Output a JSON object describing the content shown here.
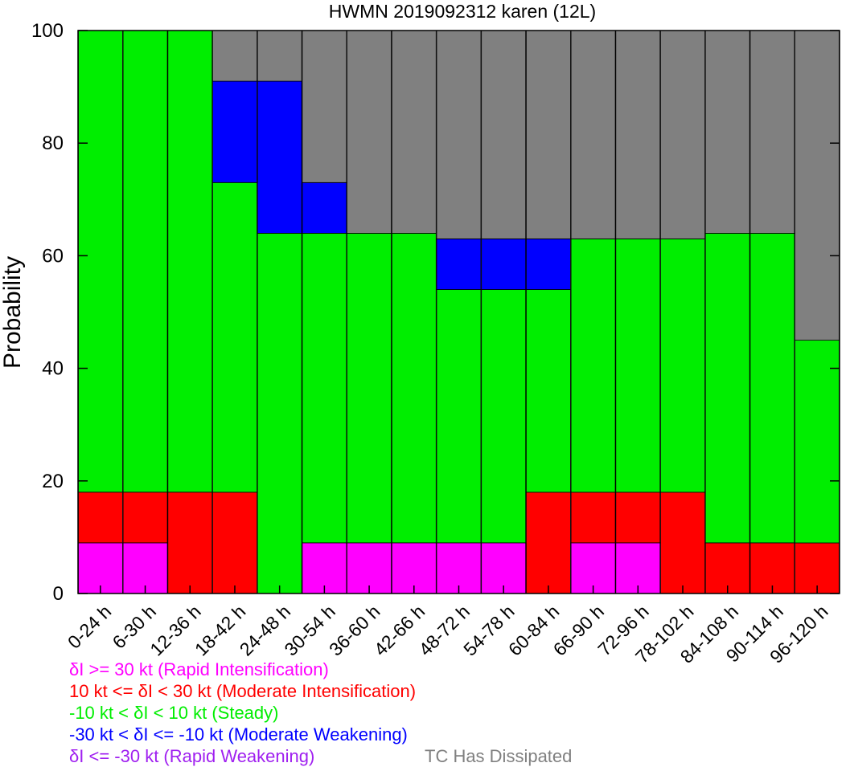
{
  "chart_data": {
    "type": "bar",
    "stacked": true,
    "title": "HWMN 2019092312 karen (12L)",
    "ylabel": "Probability",
    "xlabel": "",
    "ylim": [
      0,
      100
    ],
    "yticks": [
      0,
      20,
      40,
      60,
      80,
      100
    ],
    "grid": false,
    "categories": [
      "0-24 h",
      "6-30 h",
      "12-36 h",
      "18-42 h",
      "24-48 h",
      "30-54 h",
      "36-60 h",
      "42-66 h",
      "48-72 h",
      "54-78 h",
      "60-84 h",
      "66-90 h",
      "72-96 h",
      "78-102 h",
      "84-108 h",
      "90-114 h",
      "96-120 h"
    ],
    "series": [
      {
        "name": "Rapid Intensification",
        "color": "#ff00ff",
        "values": [
          9,
          9,
          0,
          0,
          0,
          9,
          9,
          9,
          9,
          9,
          0,
          9,
          9,
          0,
          0,
          0,
          0
        ]
      },
      {
        "name": "Moderate Intensification",
        "color": "#ff0000",
        "values": [
          9,
          9,
          18,
          18,
          0,
          0,
          0,
          0,
          0,
          0,
          18,
          9,
          9,
          18,
          9,
          9,
          9
        ]
      },
      {
        "name": "Steady",
        "color": "#00ee00",
        "values": [
          82,
          82,
          82,
          55,
          64,
          55,
          55,
          55,
          45,
          45,
          36,
          45,
          45,
          45,
          55,
          55,
          36
        ]
      },
      {
        "name": "Moderate Weakening",
        "color": "#0000ff",
        "values": [
          0,
          0,
          0,
          18,
          27,
          9,
          0,
          0,
          9,
          9,
          9,
          0,
          0,
          0,
          0,
          0,
          0
        ]
      },
      {
        "name": "Rapid Weakening",
        "color": "#a020f0",
        "values": [
          0,
          0,
          0,
          0,
          0,
          0,
          0,
          0,
          0,
          0,
          0,
          0,
          0,
          0,
          0,
          0,
          0
        ]
      },
      {
        "name": "TC Has Dissipated",
        "color": "#808080",
        "values": [
          0,
          0,
          0,
          9,
          9,
          27,
          36,
          36,
          37,
          37,
          37,
          37,
          37,
          37,
          36,
          36,
          55
        ]
      }
    ],
    "legend_placement": "bottom",
    "legend": [
      {
        "text": "δI >= 30 kt (Rapid Intensification)",
        "color": "#ff00ff"
      },
      {
        "text": "10 kt <= δI < 30 kt (Moderate Intensification)",
        "color": "#ff0000"
      },
      {
        "text": "-10 kt < δI < 10 kt (Steady)",
        "color": "#00ee00"
      },
      {
        "text": "-30 kt < δI <= -10 kt (Moderate Weakening)",
        "color": "#0000ff"
      },
      {
        "text": "δI <= -30 kt (Rapid Weakening)",
        "color": "#a020f0"
      },
      {
        "text": "TC Has Dissipated",
        "color": "#808080"
      }
    ]
  }
}
